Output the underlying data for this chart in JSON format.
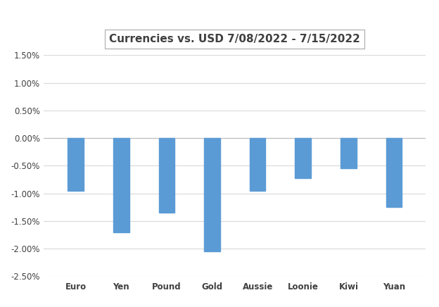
{
  "categories": [
    "Euro",
    "Yen",
    "Pound",
    "Gold",
    "Aussie",
    "Loonie",
    "Kiwi",
    "Yuan"
  ],
  "values": [
    -0.0095,
    -0.017,
    -0.0135,
    -0.0205,
    -0.0095,
    -0.0072,
    -0.0055,
    -0.0125
  ],
  "bar_color": "#5B9BD5",
  "title": "Currencies vs. USD 7/08/2022 - 7/15/2022",
  "ylim": [
    -0.025,
    0.015
  ],
  "yticks": [
    -0.025,
    -0.02,
    -0.015,
    -0.01,
    -0.005,
    0.0,
    0.005,
    0.01,
    0.015
  ],
  "background_color": "#FFFFFF",
  "grid_color": "#D9D9D9",
  "title_fontsize": 11,
  "tick_fontsize": 8.5,
  "bar_width": 0.35,
  "xlabel_fontsize": 10
}
